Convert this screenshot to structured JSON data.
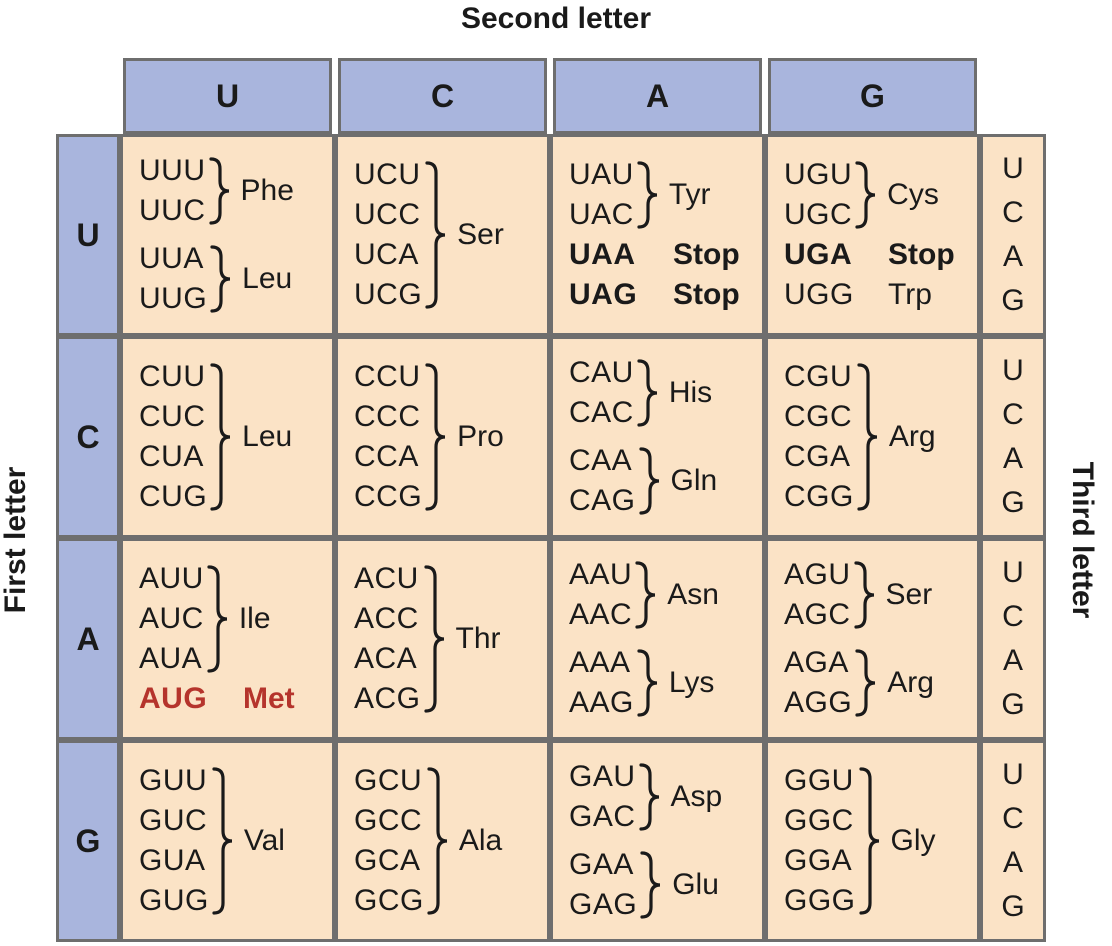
{
  "labels": {
    "top": "Second letter",
    "left": "First letter",
    "right": "Third letter"
  },
  "second_letters": [
    "U",
    "C",
    "A",
    "G"
  ],
  "first_letters": [
    "U",
    "C",
    "A",
    "G"
  ],
  "third_letters": [
    "U",
    "C",
    "A",
    "G"
  ],
  "colors": {
    "header_bg": "#a9b5dd",
    "cell_bg": "#fbe3c6",
    "border": "#6e6e6e",
    "text": "#1a1a1a",
    "start_codon_red": "#b5342c"
  },
  "rows": [
    {
      "letter": "U",
      "cells": [
        {
          "groups": [
            {
              "codons": [
                "UUU",
                "UUC"
              ],
              "label": "Phe"
            },
            {
              "codons": [
                "UUA",
                "UUG"
              ],
              "label": "Leu"
            }
          ]
        },
        {
          "groups": [
            {
              "codons": [
                "UCU",
                "UCC",
                "UCA",
                "UCG"
              ],
              "label": "Ser"
            }
          ]
        },
        {
          "groups": [
            {
              "codons": [
                "UAU",
                "UAC"
              ],
              "label": "Tyr"
            },
            {
              "codons": [
                "UAA"
              ],
              "label": "Stop",
              "nobrace": true,
              "bold": true
            },
            {
              "codons": [
                "UAG"
              ],
              "label": "Stop",
              "nobrace": true,
              "bold": true
            }
          ]
        },
        {
          "groups": [
            {
              "codons": [
                "UGU",
                "UGC"
              ],
              "label": "Cys"
            },
            {
              "codons": [
                "UGA"
              ],
              "label": "Stop",
              "nobrace": true,
              "bold": true
            },
            {
              "codons": [
                "UGG"
              ],
              "label": "Trp",
              "nobrace": true
            }
          ]
        }
      ]
    },
    {
      "letter": "C",
      "cells": [
        {
          "groups": [
            {
              "codons": [
                "CUU",
                "CUC",
                "CUA",
                "CUG"
              ],
              "label": "Leu"
            }
          ]
        },
        {
          "groups": [
            {
              "codons": [
                "CCU",
                "CCC",
                "CCA",
                "CCG"
              ],
              "label": "Pro"
            }
          ]
        },
        {
          "groups": [
            {
              "codons": [
                "CAU",
                "CAC"
              ],
              "label": "His"
            },
            {
              "codons": [
                "CAA",
                "CAG"
              ],
              "label": "Gln"
            }
          ]
        },
        {
          "groups": [
            {
              "codons": [
                "CGU",
                "CGC",
                "CGA",
                "CGG"
              ],
              "label": "Arg"
            }
          ]
        }
      ]
    },
    {
      "letter": "A",
      "cells": [
        {
          "groups": [
            {
              "codons": [
                "AUU",
                "AUC",
                "AUA"
              ],
              "label": "Ile"
            },
            {
              "codons": [
                "AUG"
              ],
              "label": "Met",
              "nobrace": true,
              "highlight": true
            }
          ]
        },
        {
          "groups": [
            {
              "codons": [
                "ACU",
                "ACC",
                "ACA",
                "ACG"
              ],
              "label": "Thr"
            }
          ]
        },
        {
          "groups": [
            {
              "codons": [
                "AAU",
                "AAC"
              ],
              "label": "Asn"
            },
            {
              "codons": [
                "AAA",
                "AAG"
              ],
              "label": "Lys"
            }
          ]
        },
        {
          "groups": [
            {
              "codons": [
                "AGU",
                "AGC"
              ],
              "label": "Ser"
            },
            {
              "codons": [
                "AGA",
                "AGG"
              ],
              "label": "Arg"
            }
          ]
        }
      ]
    },
    {
      "letter": "G",
      "cells": [
        {
          "groups": [
            {
              "codons": [
                "GUU",
                "GUC",
                "GUA",
                "GUG"
              ],
              "label": "Val"
            }
          ]
        },
        {
          "groups": [
            {
              "codons": [
                "GCU",
                "GCC",
                "GCA",
                "GCG"
              ],
              "label": "Ala"
            }
          ]
        },
        {
          "groups": [
            {
              "codons": [
                "GAU",
                "GAC"
              ],
              "label": "Asp"
            },
            {
              "codons": [
                "GAA",
                "GAG"
              ],
              "label": "Glu"
            }
          ]
        },
        {
          "groups": [
            {
              "codons": [
                "GGU",
                "GGC",
                "GGA",
                "GGG"
              ],
              "label": "Gly"
            }
          ]
        }
      ]
    }
  ]
}
